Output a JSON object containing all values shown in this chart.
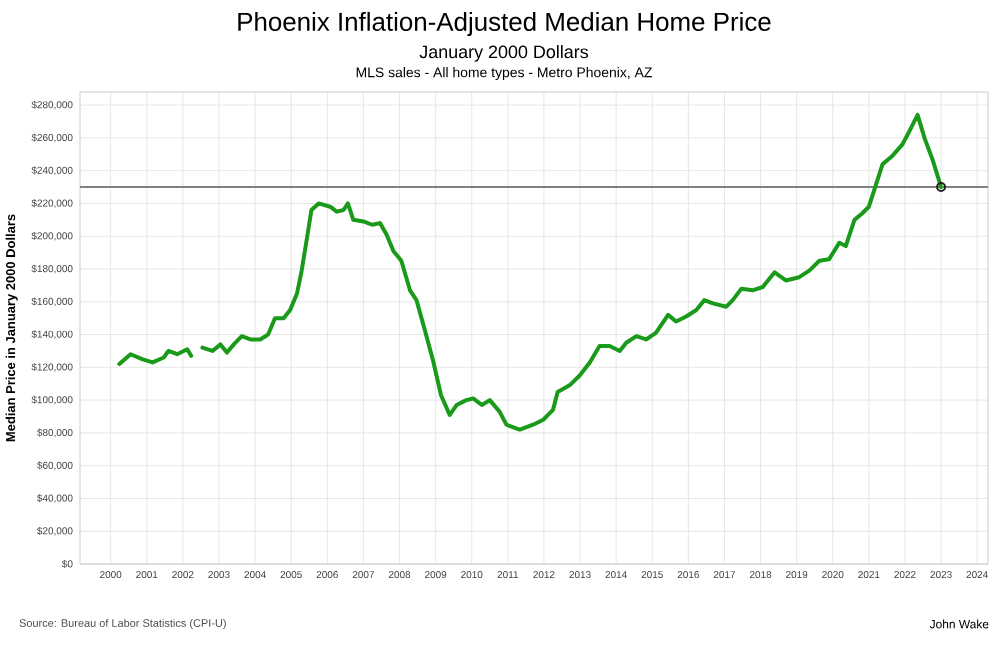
{
  "chart_data": {
    "type": "line",
    "title": "Phoenix Inflation-Adjusted Median Home Price",
    "subtitle": "January 2000 Dollars",
    "ylabel": "Median Price in January 2000 Dollars",
    "annotations": [
      "MLS sales - All home types - Metro Phoenix, AZ",
      "Source: Bureau of Labor Statistics (CPI-U)",
      "John Wake"
    ],
    "series": [
      {
        "color": "#1a9a1a",
        "marker": "none",
        "x": [
          2000.24,
          2000.55,
          2000.87,
          2001.16,
          2001.47,
          2001.6,
          2001.84,
          2002.12,
          2002.23,
          2002.4,
          2002.54,
          2002.82,
          2003.04,
          2003.22,
          2003.41,
          2003.63,
          2003.87,
          2004.14,
          2004.36,
          2004.55,
          2004.79,
          2004.97,
          2005.16,
          2005.29,
          2005.43,
          2005.56,
          2005.76,
          2006.08,
          2006.26,
          2006.45,
          2006.57,
          2006.72,
          2007.0,
          2007.24,
          2007.46,
          2007.64,
          2007.83,
          2008.05,
          2008.29,
          2008.47,
          2008.71,
          2008.93,
          2009.15,
          2009.39,
          2009.58,
          2009.85,
          2010.04,
          2010.28,
          2010.5,
          2010.77,
          2010.96,
          2011.33,
          2011.7,
          2011.98,
          2012.25,
          2012.38,
          2012.71,
          2012.99,
          2013.27,
          2013.54,
          2013.82,
          2014.1,
          2014.28,
          2014.56,
          2014.83,
          2015.1,
          2015.44,
          2015.66,
          2015.94,
          2016.22,
          2016.44,
          2016.68,
          2017.05,
          2017.23,
          2017.47,
          2017.78,
          2018.06,
          2018.39,
          2018.7,
          2019.07,
          2019.35,
          2019.63,
          2019.9,
          2020.18,
          2020.36,
          2020.6,
          2020.82,
          2021.0,
          2021.19,
          2021.38,
          2021.65,
          2021.93,
          2022.12,
          2022.35,
          2022.54,
          2022.76,
          2023.0
        ],
        "values": [
          122000,
          128000,
          125000,
          123000,
          126000,
          130000,
          128000,
          131000,
          127000,
          null,
          132000,
          130000,
          134000,
          129000,
          134000,
          139000,
          137000,
          137000,
          140000,
          150000,
          150000,
          155000,
          165000,
          179000,
          198000,
          216000,
          220000,
          218000,
          215000,
          216000,
          220000,
          210000,
          209000,
          207000,
          208000,
          201000,
          191000,
          185000,
          167000,
          161000,
          142000,
          124000,
          103000,
          91000,
          97000,
          100000,
          101000,
          97000,
          100000,
          93000,
          85000,
          82000,
          85000,
          88000,
          94000,
          105000,
          109000,
          115000,
          123000,
          133000,
          133000,
          130000,
          135000,
          139000,
          137000,
          141000,
          152000,
          148000,
          151000,
          155000,
          161000,
          159000,
          157000,
          161000,
          168000,
          167000,
          169000,
          178000,
          173000,
          175000,
          179000,
          185000,
          186000,
          196000,
          194000,
          210000,
          214000,
          218000,
          231000,
          244000,
          249000,
          256000,
          264000,
          274000,
          260000,
          247000,
          230000
        ]
      },
      {
        "type": "scatter",
        "color": "#222222",
        "marker": "circle",
        "x": [
          2023.0
        ],
        "values": [
          230000
        ]
      }
    ],
    "ref_lines": [
      {
        "axis": "y",
        "value": 230000,
        "color": "#808080"
      }
    ],
    "xlim": [
      1999.15,
      2024.3
    ],
    "ylim": [
      0,
      288000
    ],
    "xticks": [
      2000,
      2001,
      2002,
      2003,
      2004,
      2005,
      2006,
      2007,
      2008,
      2009,
      2010,
      2011,
      2012,
      2013,
      2014,
      2015,
      2016,
      2017,
      2018,
      2019,
      2020,
      2021,
      2022,
      2023,
      2024
    ],
    "yticks": [
      {
        "value": 0,
        "label": "$0"
      },
      {
        "value": 20000,
        "label": "$20,000"
      },
      {
        "value": 40000,
        "label": "$40,000"
      },
      {
        "value": 60000,
        "label": "$60,000"
      },
      {
        "value": 80000,
        "label": "$80,000"
      },
      {
        "value": 100000,
        "label": "$100,000"
      },
      {
        "value": 120000,
        "label": "$120,000"
      },
      {
        "value": 140000,
        "label": "$140,000"
      },
      {
        "value": 160000,
        "label": "$160,000"
      },
      {
        "value": 180000,
        "label": "$180,000"
      },
      {
        "value": 200000,
        "label": "$200,000"
      },
      {
        "value": 220000,
        "label": "$220,000"
      },
      {
        "value": 240000,
        "label": "$240,000"
      },
      {
        "value": 260000,
        "label": "$260,000"
      },
      {
        "value": 280000,
        "label": "$280,000"
      }
    ],
    "grid": true
  }
}
